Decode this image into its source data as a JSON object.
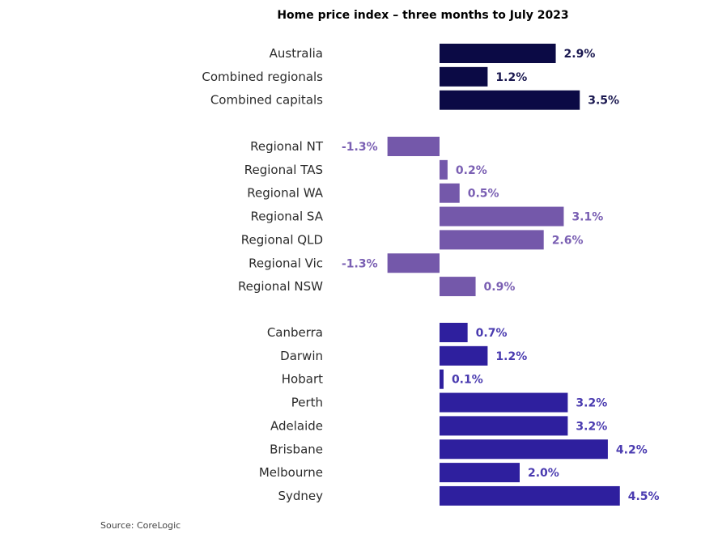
{
  "title": "Home price index – three months to July 2023",
  "source": "Source: CoreLogic",
  "colors": {
    "national": "#0b0a45",
    "regional": "#7458aa",
    "capitals": "#2e1f9e",
    "national_label": "#1a1850",
    "regional_label": "#7a5fb3",
    "capitals_label": "#4a3bb0"
  },
  "chart_data": {
    "type": "bar",
    "orientation": "horizontal",
    "unit": "%",
    "groups": [
      {
        "color_key": "national",
        "bars": [
          {
            "category": "Australia",
            "value": 2.9,
            "label": "2.9%"
          },
          {
            "category": "Combined regionals",
            "value": 1.2,
            "label": "1.2%"
          },
          {
            "category": "Combined capitals",
            "value": 3.5,
            "label": "3.5%"
          }
        ]
      },
      {
        "color_key": "regional",
        "bars": [
          {
            "category": "Regional NT",
            "value": -1.3,
            "label": "-1.3%"
          },
          {
            "category": "Regional TAS",
            "value": 0.2,
            "label": "0.2%"
          },
          {
            "category": "Regional WA",
            "value": 0.5,
            "label": "0.5%"
          },
          {
            "category": "Regional SA",
            "value": 3.1,
            "label": "3.1%"
          },
          {
            "category": "Regional QLD",
            "value": 2.6,
            "label": "2.6%"
          },
          {
            "category": "Regional Vic",
            "value": -1.3,
            "label": "-1.3%"
          },
          {
            "category": "Regional NSW",
            "value": 0.9,
            "label": "0.9%"
          }
        ]
      },
      {
        "color_key": "capitals",
        "bars": [
          {
            "category": "Canberra",
            "value": 0.7,
            "label": "0.7%"
          },
          {
            "category": "Darwin",
            "value": 1.2,
            "label": "1.2%"
          },
          {
            "category": "Hobart",
            "value": 0.1,
            "label": "0.1%"
          },
          {
            "category": "Perth",
            "value": 3.2,
            "label": "3.2%"
          },
          {
            "category": "Adelaide",
            "value": 3.2,
            "label": "3.2%"
          },
          {
            "category": "Brisbane",
            "value": 4.2,
            "label": "4.2%"
          },
          {
            "category": "Melbourne",
            "value": 2.0,
            "label": "2.0%"
          },
          {
            "category": "Sydney",
            "value": 4.5,
            "label": "4.5%"
          }
        ]
      }
    ],
    "grid": false,
    "legend": "none"
  }
}
